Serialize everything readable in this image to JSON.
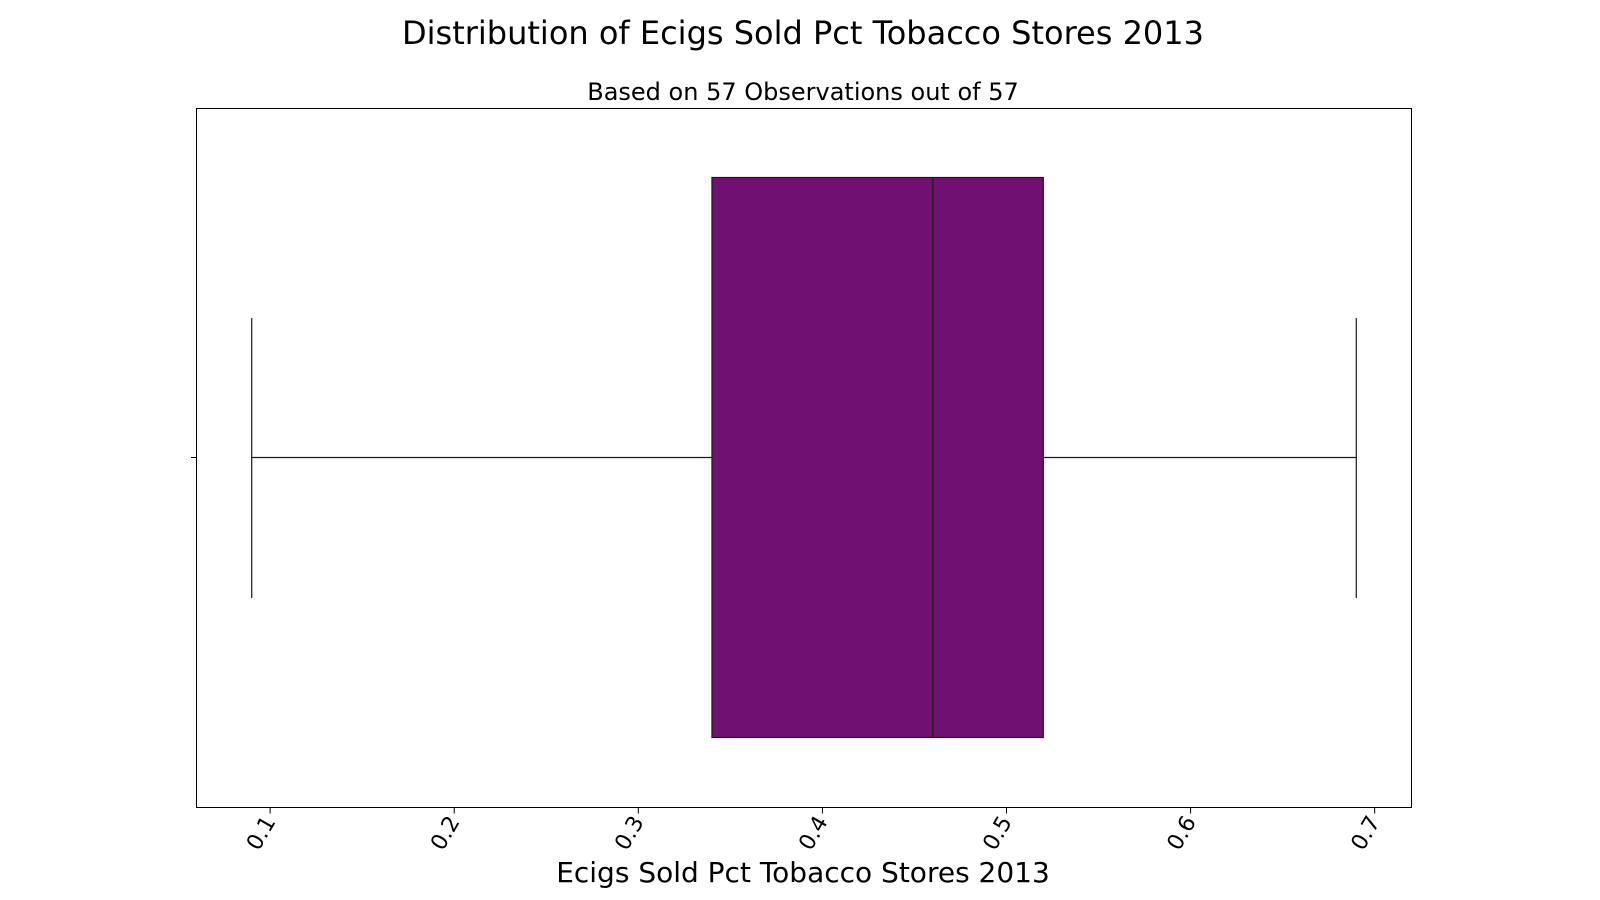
{
  "chart_data": {
    "type": "box",
    "title": "Distribution of Ecigs Sold Pct Tobacco Stores 2013",
    "subtitle": "Based on 57 Observations out of 57",
    "xlabel": "Ecigs Sold Pct Tobacco Stores 2013",
    "xlim": [
      0.06,
      0.72
    ],
    "xticks": [
      0.1,
      0.2,
      0.3,
      0.4,
      0.5,
      0.6,
      0.7
    ],
    "xtick_labels": [
      "0.1",
      "0.2",
      "0.3",
      "0.4",
      "0.5",
      "0.6",
      "0.7"
    ],
    "box": {
      "whisker_low": 0.09,
      "q1": 0.34,
      "median": 0.46,
      "q3": 0.52,
      "whisker_high": 0.69
    },
    "box_color": "#701070",
    "edge_color": "#1a1a1a",
    "grid": false,
    "legend": "none"
  }
}
